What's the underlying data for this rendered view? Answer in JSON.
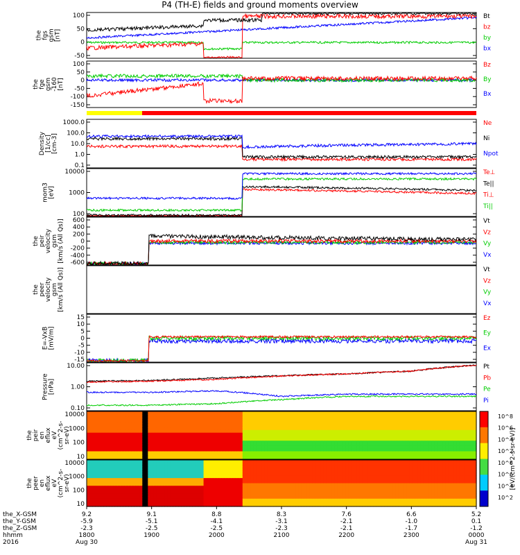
{
  "title": "P4 (TH-E) fields and ground moments overview",
  "colors": {
    "black": "#000000",
    "red": "#ff0000",
    "green": "#00cc00",
    "blue": "#0000ff",
    "yellow": "#ffff00"
  },
  "panels": [
    {
      "key": "fgs",
      "ylabel": "the\nfgs\ngsm\n[nT]",
      "ticks": [
        100,
        50,
        0,
        -50
      ],
      "ylim": [
        -70,
        110
      ],
      "legend": [
        {
          "label": "Bt",
          "color": "#000000"
        },
        {
          "label": "bz",
          "color": "#ff0000"
        },
        {
          "label": "by",
          "color": "#00cc00"
        },
        {
          "label": "bx",
          "color": "#0000ff"
        }
      ]
    },
    {
      "key": "fge",
      "ylabel": "the\nfge\ngsm\n-160\n[nT]",
      "ticks": [
        100,
        50,
        0,
        -50,
        -100,
        -150
      ],
      "ylim": [
        -170,
        110
      ],
      "legend": [
        {
          "label": "Bz",
          "color": "#ff0000"
        },
        {
          "label": "By",
          "color": "#00cc00"
        },
        {
          "label": "Bx",
          "color": "#0000ff"
        }
      ]
    },
    {
      "key": "density",
      "ylabel": "Density\n[1/cc]\n[cm-3]",
      "ticks": [
        "1000.0",
        "100.0",
        "10.0",
        "1.0",
        "0.1"
      ],
      "legend": [
        {
          "label": "Ne",
          "color": "#ff0000"
        },
        {
          "label": "Ni",
          "color": "#000000"
        },
        {
          "label": "Npot",
          "color": "#0000ff"
        }
      ]
    },
    {
      "key": "temp",
      "ylabel": "mom3\n[eV]",
      "ticks": [
        "10000",
        "1000",
        "100"
      ],
      "legend": [
        {
          "label": "Te⊥",
          "color": "#ff0000"
        },
        {
          "label": "Te||",
          "color": "#000000"
        },
        {
          "label": "Ti⊥",
          "color": "#ff0000"
        },
        {
          "label": "Ti||",
          "color": "#00cc00"
        }
      ]
    },
    {
      "key": "peir_vel",
      "ylabel": "the\npeir\nvelocity\ngsm\n[km/s (All Qs)]",
      "ticks": [
        600,
        400,
        200,
        0,
        -200,
        -400,
        -600
      ],
      "legend": [
        {
          "label": "Vt",
          "color": "#000000"
        },
        {
          "label": "Vz",
          "color": "#ff0000"
        },
        {
          "label": "Vy",
          "color": "#00cc00"
        },
        {
          "label": "Vx",
          "color": "#0000ff"
        }
      ]
    },
    {
      "key": "peer_vel",
      "ylabel": "the\npeer\nvelocity\ngsm\n[km/s (All Qs)]",
      "ticks": [],
      "legend": [
        {
          "label": "Vt",
          "color": "#000000"
        },
        {
          "label": "Vz",
          "color": "#ff0000"
        },
        {
          "label": "Vy",
          "color": "#00cc00"
        },
        {
          "label": "Vx",
          "color": "#0000ff"
        }
      ]
    },
    {
      "key": "efield",
      "ylabel": "E=-VxB\n[mV/m]",
      "ticks": [
        15,
        10,
        5,
        0,
        -5,
        -10,
        -15
      ],
      "legend": [
        {
          "label": "Ez",
          "color": "#ff0000"
        },
        {
          "label": "Ey",
          "color": "#00cc00"
        },
        {
          "label": "Ex",
          "color": "#0000ff"
        }
      ]
    },
    {
      "key": "pressure",
      "ylabel": "Pressure\n[nPa]",
      "ticks": [
        "10.00",
        "1.00",
        "0.10"
      ],
      "legend": [
        {
          "label": "Pt",
          "color": "#000000"
        },
        {
          "label": "Pb",
          "color": "#ff0000"
        },
        {
          "label": "Pe",
          "color": "#00cc00"
        },
        {
          "label": "Pi",
          "color": "#0000ff"
        }
      ]
    },
    {
      "key": "peir_flux",
      "ylabel": "the\npeir\nen\neflux\neV\n(cm^2-s-\nsr-eV)",
      "ticks": [
        "10000",
        "1000",
        "100",
        "10"
      ],
      "legend": []
    },
    {
      "key": "peer_flux",
      "ylabel": "the\npeer\nen\neflux\neV\n(cm^2-s-\nsr-eV)",
      "ticks": [
        "10000",
        "1000",
        "100",
        "10"
      ],
      "legend": []
    }
  ],
  "colorbar": {
    "label": "[eV/(cm^2-s-sr-eV)]",
    "ticks_top": [
      "10^8",
      "10^6",
      "10^4",
      "10^2"
    ],
    "ticks_bottom": [
      "10^8",
      "10^6",
      "10^4",
      "10^2"
    ]
  },
  "footer": {
    "rows": [
      "the_X-GSM",
      "the_Y-GSM",
      "the_Z-GSM",
      "hhmm",
      "2016"
    ],
    "columns": [
      {
        "x": "9.2",
        "y": "-5.9",
        "z": "-2.3",
        "t": "1800",
        "d": "Aug 30"
      },
      {
        "x": "9.1",
        "y": "-5.1",
        "z": "-2.5",
        "t": "1900",
        "d": ""
      },
      {
        "x": "8.8",
        "y": "-4.1",
        "z": "-2.5",
        "t": "2000",
        "d": ""
      },
      {
        "x": "8.3",
        "y": "-3.1",
        "z": "-2.3",
        "t": "2100",
        "d": ""
      },
      {
        "x": "7.6",
        "y": "-2.1",
        "z": "-2.1",
        "t": "2200",
        "d": ""
      },
      {
        "x": "6.6",
        "y": "-1.0",
        "z": "-1.7",
        "t": "2300",
        "d": ""
      },
      {
        "x": "5.2",
        "y": "0.1",
        "z": "-1.2",
        "t": "0000",
        "d": "Aug 31"
      }
    ]
  },
  "chart_data": {
    "type": "line",
    "title": "P4 (TH-E) fields and ground moments overview",
    "x": [
      "1800",
      "1900",
      "2000",
      "2100",
      "2200",
      "2300",
      "0000"
    ],
    "xlabel": "hhmm",
    "series": [
      {
        "name": "Bt",
        "panel": "fgs",
        "values": [
          40,
          45,
          70,
          95,
          105,
          110,
          110
        ]
      },
      {
        "name": "bz",
        "panel": "fgs",
        "values": [
          -30,
          -20,
          -10,
          80,
          100,
          108,
          110
        ]
      },
      {
        "name": "by",
        "panel": "fgs",
        "values": [
          -10,
          -5,
          -5,
          -5,
          -5,
          -5,
          -5
        ]
      },
      {
        "name": "bx",
        "panel": "fgs",
        "values": [
          10,
          15,
          20,
          10,
          25,
          45,
          95
        ]
      },
      {
        "name": "Ne",
        "panel": "density",
        "values": [
          6,
          5,
          8,
          0.5,
          0.4,
          0.5,
          0.6
        ]
      },
      {
        "name": "Ni",
        "panel": "density",
        "values": [
          25,
          20,
          30,
          0.8,
          0.6,
          0.7,
          0.9
        ]
      },
      {
        "name": "Npot",
        "panel": "density",
        "values": [
          40,
          30,
          60,
          3,
          2.5,
          3,
          10
        ]
      },
      {
        "name": "Pt",
        "panel": "pressure",
        "values": [
          2,
          2.2,
          3,
          4,
          5,
          7,
          15
        ]
      },
      {
        "name": "Pb",
        "panel": "pressure",
        "values": [
          1.8,
          2,
          2.5,
          3.8,
          5,
          7,
          15
        ]
      },
      {
        "name": "Pe",
        "panel": "pressure",
        "values": [
          0.1,
          0.1,
          0.12,
          0.2,
          0.3,
          0.3,
          0.3
        ]
      },
      {
        "name": "Pi",
        "panel": "pressure",
        "values": [
          0.5,
          0.5,
          0.6,
          0.3,
          0.4,
          0.4,
          0.4
        ]
      }
    ]
  }
}
